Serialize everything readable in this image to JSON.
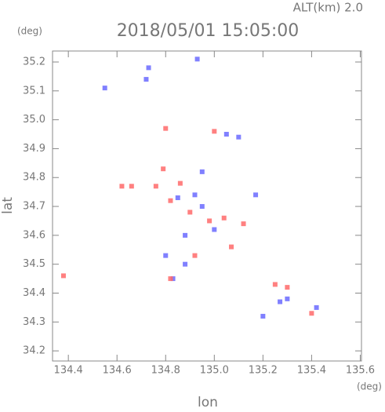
{
  "chart_data": {
    "type": "scatter",
    "title": "2018/05/01 15:05:00",
    "subtitle": "ALT(km) 2.0",
    "x_label": "lon",
    "y_label": "lat",
    "x_unit": "(deg)",
    "y_unit": "(deg)",
    "xlim": [
      134.335,
      135.605
    ],
    "ylim": [
      34.165,
      35.238
    ],
    "xticks": [
      134.4,
      134.6,
      134.8,
      {
        "value": 135,
        "label": "135.0"
      },
      135.2,
      135.4,
      135.6
    ],
    "yticks": [
      34.2,
      34.3,
      34.4,
      34.5,
      34.6,
      34.7,
      34.8,
      34.9,
      {
        "value": 35,
        "label": "35.0"
      },
      35.1,
      35.2
    ],
    "series": [
      {
        "color": "#6a6aff",
        "x": [
          134.55,
          134.72,
          134.73,
          135.1,
          134.92,
          134.85,
          134.88,
          134.8,
          134.88,
          135.27,
          135.3,
          135.05,
          134.83,
          135.2,
          135.42,
          135.0,
          134.95,
          134.93,
          134.95,
          135.17
        ],
        "y": [
          35.11,
          35.14,
          35.18,
          34.94,
          34.74,
          34.73,
          34.6,
          34.53,
          34.5,
          34.37,
          34.38,
          34.95,
          34.45,
          34.32,
          34.35,
          34.62,
          34.7,
          35.21,
          34.82,
          34.74
        ]
      },
      {
        "color": "#ff6a6a",
        "x": [
          134.38,
          134.62,
          134.79,
          134.82,
          134.8,
          135.0,
          134.9,
          135.04,
          134.98,
          135.12,
          135.07,
          134.86,
          134.82,
          135.25,
          135.4,
          134.76,
          134.92,
          135.3,
          134.66
        ],
        "y": [
          34.46,
          34.77,
          34.83,
          34.72,
          34.97,
          34.96,
          34.68,
          34.66,
          34.65,
          34.64,
          34.56,
          34.78,
          34.45,
          34.43,
          34.33,
          34.77,
          34.53,
          34.42,
          34.77
        ]
      }
    ]
  }
}
